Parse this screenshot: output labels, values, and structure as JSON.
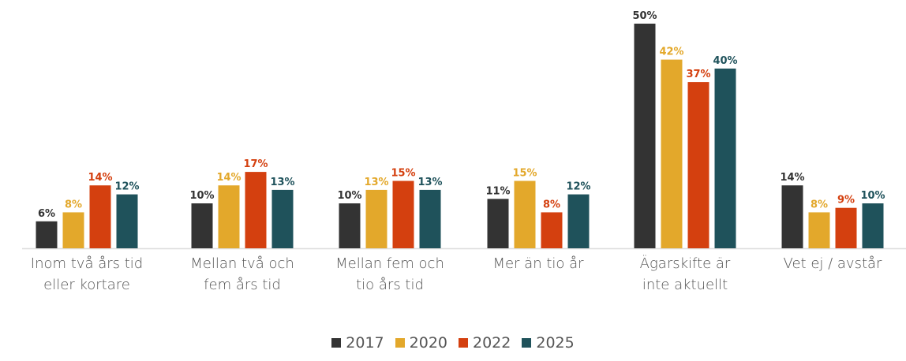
{
  "chart_data": {
    "type": "bar",
    "title": "",
    "xlabel": "",
    "ylabel": "",
    "ylim": [
      0,
      50
    ],
    "grid": false,
    "legend_position": "bottom",
    "categories": [
      [
        "Inom två års tid",
        "eller kortare"
      ],
      [
        "Mellan två och",
        "fem års tid"
      ],
      [
        "Mellan fem och",
        "tio års tid"
      ],
      [
        "Mer än tio år"
      ],
      [
        "Ägarskifte är",
        "inte aktuellt"
      ],
      [
        "Vet ej / avstår"
      ]
    ],
    "series": [
      {
        "name": "2017",
        "color": "#333333",
        "values": [
          6,
          10,
          10,
          11,
          50,
          14
        ],
        "labels": [
          "6%",
          "10%",
          "10%",
          "11%",
          "50%",
          "14%"
        ]
      },
      {
        "name": "2020",
        "color": "#E3A82B",
        "values": [
          8,
          14,
          13,
          15,
          42,
          8
        ],
        "labels": [
          "8%",
          "14%",
          "13%",
          "15%",
          "42%",
          "8%"
        ]
      },
      {
        "name": "2022",
        "color": "#D4400F",
        "values": [
          14,
          17,
          15,
          8,
          37,
          9
        ],
        "labels": [
          "14%",
          "17%",
          "15%",
          "8%",
          "37%",
          "9%"
        ]
      },
      {
        "name": "2025",
        "color": "#1F525B",
        "values": [
          12,
          13,
          13,
          12,
          40,
          10
        ],
        "labels": [
          "12%",
          "13%",
          "13%",
          "12%",
          "40%",
          "10%"
        ]
      }
    ]
  }
}
